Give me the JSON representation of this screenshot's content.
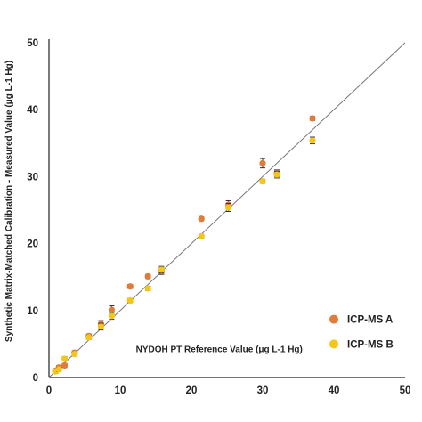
{
  "chart_data": {
    "type": "scatter",
    "title": "",
    "xlabel": "NYDOH PT Reference Value (μg L-1 Hg)",
    "ylabel": "Synthetic Matrix-Matched Calibration - Measured Value (μg L-1 Hg)",
    "xlim": [
      0,
      50
    ],
    "ylim": [
      0,
      50
    ],
    "xticks": [
      "0",
      "10",
      "20",
      "30",
      "40",
      "50"
    ],
    "yticks": [
      "0",
      "10",
      "20",
      "30",
      "40",
      "50"
    ],
    "legend_position": "bottom-right",
    "reference_line": "y = x",
    "series": [
      {
        "name": "ICP-MS A",
        "color": "#E07B39",
        "points": [
          {
            "x": 0.9,
            "y": 1.0,
            "err": 0.3
          },
          {
            "x": 1.4,
            "y": 1.5,
            "err": 0.3
          },
          {
            "x": 2.2,
            "y": 1.8,
            "err": 0.3
          },
          {
            "x": 3.6,
            "y": 3.7,
            "err": 0.3
          },
          {
            "x": 5.6,
            "y": 6.2,
            "err": 0.3
          },
          {
            "x": 7.3,
            "y": 8.0,
            "err": 0.5
          },
          {
            "x": 8.8,
            "y": 10.1,
            "err": 0.6
          },
          {
            "x": 11.4,
            "y": 13.6,
            "err": 0.3
          },
          {
            "x": 13.9,
            "y": 15.1,
            "err": 0.3
          },
          {
            "x": 15.8,
            "y": 15.9,
            "err": 0.5
          },
          {
            "x": 21.4,
            "y": 23.7,
            "err": 0.3
          },
          {
            "x": 25.2,
            "y": 25.8,
            "err": 0.6
          },
          {
            "x": 30.0,
            "y": 32.0,
            "err": 0.7
          },
          {
            "x": 32.0,
            "y": 30.5,
            "err": 0.5
          },
          {
            "x": 37.0,
            "y": 38.7,
            "err": 0.3
          }
        ]
      },
      {
        "name": "ICP-MS B",
        "color": "#F5C518",
        "points": [
          {
            "x": 0.9,
            "y": 0.9,
            "err": 0.3
          },
          {
            "x": 1.4,
            "y": 1.2,
            "err": 0.3
          },
          {
            "x": 2.2,
            "y": 2.8,
            "err": 0.3
          },
          {
            "x": 3.6,
            "y": 3.5,
            "err": 0.3
          },
          {
            "x": 5.6,
            "y": 6.0,
            "err": 0.3
          },
          {
            "x": 7.3,
            "y": 7.6,
            "err": 0.5
          },
          {
            "x": 8.8,
            "y": 9.2,
            "err": 0.5
          },
          {
            "x": 11.4,
            "y": 11.5,
            "err": 0.3
          },
          {
            "x": 13.9,
            "y": 13.3,
            "err": 0.3
          },
          {
            "x": 15.8,
            "y": 16.1,
            "err": 0.5
          },
          {
            "x": 21.4,
            "y": 21.1,
            "err": 0.3
          },
          {
            "x": 25.2,
            "y": 25.4,
            "err": 0.6
          },
          {
            "x": 30.0,
            "y": 29.3,
            "err": 0.3
          },
          {
            "x": 32.0,
            "y": 30.3,
            "err": 0.5
          },
          {
            "x": 37.0,
            "y": 35.4,
            "err": 0.5
          }
        ]
      }
    ]
  }
}
